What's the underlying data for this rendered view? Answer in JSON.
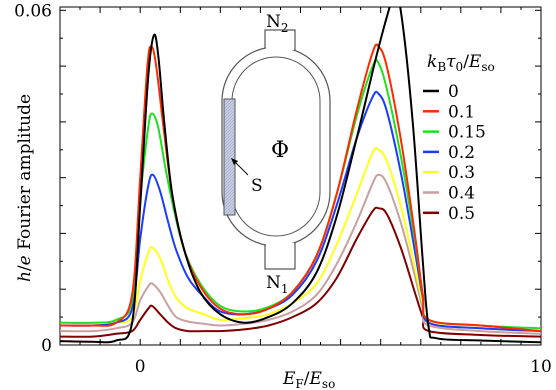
{
  "chart_data": {
    "type": "line",
    "title": "",
    "xlabel": "E_F / E_so",
    "ylabel": "h/e Fourier amplitude",
    "xlim": [
      -2,
      10
    ],
    "ylim": [
      0,
      0.0606
    ],
    "x_ticks": [
      {
        "value": 0,
        "label": "0"
      },
      {
        "value": 10,
        "label": "10"
      }
    ],
    "y_ticks": [
      {
        "value": 0,
        "label": "0"
      },
      {
        "value": 0.06,
        "label": "0.06"
      }
    ],
    "legend_title": "k_B τ_0 / E_so",
    "legend_position": "top-right",
    "grid": false,
    "series": [
      {
        "name": "0",
        "color": "#000000",
        "points": [
          [
            -2,
            0.0007
          ],
          [
            -1.2,
            0.0006
          ],
          [
            -0.6,
            0.0008
          ],
          [
            -0.2,
            0.004
          ],
          [
            0.0,
            0.025
          ],
          [
            0.2,
            0.048
          ],
          [
            0.34,
            0.0555
          ],
          [
            0.45,
            0.052
          ],
          [
            0.6,
            0.04
          ],
          [
            0.8,
            0.027
          ],
          [
            1.1,
            0.017
          ],
          [
            1.5,
            0.0095
          ],
          [
            2.0,
            0.0055
          ],
          [
            2.6,
            0.004
          ],
          [
            3.2,
            0.005
          ],
          [
            3.8,
            0.0075
          ],
          [
            4.4,
            0.013
          ],
          [
            4.9,
            0.023
          ],
          [
            5.4,
            0.037
          ],
          [
            5.9,
            0.052
          ],
          [
            6.2,
            0.06
          ],
          [
            6.32,
            0.0625
          ],
          [
            6.5,
            0.06
          ],
          [
            6.8,
            0.04
          ],
          [
            7.05,
            0.015
          ],
          [
            7.2,
            0.003
          ],
          [
            7.4,
            0.0012
          ],
          [
            8.5,
            0.0008
          ],
          [
            10,
            0.0005
          ]
        ]
      },
      {
        "name": "0.1",
        "color": "#ff2a00",
        "points": [
          [
            -2,
            0.0035
          ],
          [
            -1.2,
            0.0035
          ],
          [
            -0.6,
            0.004
          ],
          [
            -0.2,
            0.009
          ],
          [
            0.0,
            0.03
          ],
          [
            0.18,
            0.05
          ],
          [
            0.28,
            0.0535
          ],
          [
            0.4,
            0.05
          ],
          [
            0.6,
            0.038
          ],
          [
            0.8,
            0.027
          ],
          [
            1.1,
            0.017
          ],
          [
            1.5,
            0.0105
          ],
          [
            2.0,
            0.0065
          ],
          [
            2.6,
            0.0055
          ],
          [
            3.2,
            0.0065
          ],
          [
            3.8,
            0.0095
          ],
          [
            4.4,
            0.016
          ],
          [
            4.9,
            0.027
          ],
          [
            5.4,
            0.042
          ],
          [
            5.8,
            0.0525
          ],
          [
            5.95,
            0.0535
          ],
          [
            6.15,
            0.05
          ],
          [
            6.5,
            0.037
          ],
          [
            6.85,
            0.02
          ],
          [
            7.05,
            0.009
          ],
          [
            7.2,
            0.0045
          ],
          [
            8.5,
            0.0035
          ],
          [
            10,
            0.0025
          ]
        ]
      },
      {
        "name": "0.15",
        "color": "#1fe01f",
        "points": [
          [
            -2,
            0.004
          ],
          [
            -1.2,
            0.004
          ],
          [
            -0.6,
            0.0045
          ],
          [
            -0.2,
            0.008
          ],
          [
            0.0,
            0.026
          ],
          [
            0.2,
            0.039
          ],
          [
            0.3,
            0.0415
          ],
          [
            0.45,
            0.039
          ],
          [
            0.65,
            0.031
          ],
          [
            0.85,
            0.024
          ],
          [
            1.1,
            0.017
          ],
          [
            1.5,
            0.011
          ],
          [
            2.0,
            0.007
          ],
          [
            2.6,
            0.006
          ],
          [
            3.2,
            0.0068
          ],
          [
            3.8,
            0.0095
          ],
          [
            4.4,
            0.016
          ],
          [
            4.9,
            0.027
          ],
          [
            5.4,
            0.041
          ],
          [
            5.8,
            0.05
          ],
          [
            5.95,
            0.0505
          ],
          [
            6.15,
            0.046
          ],
          [
            6.5,
            0.034
          ],
          [
            6.85,
            0.019
          ],
          [
            7.05,
            0.009
          ],
          [
            7.2,
            0.0045
          ],
          [
            8.5,
            0.0035
          ],
          [
            10,
            0.003
          ]
        ]
      },
      {
        "name": "0.2",
        "color": "#1a3cff",
        "points": [
          [
            -2,
            0.0035
          ],
          [
            -1.2,
            0.0035
          ],
          [
            -0.6,
            0.004
          ],
          [
            -0.2,
            0.0065
          ],
          [
            0.0,
            0.019
          ],
          [
            0.2,
            0.0285
          ],
          [
            0.32,
            0.0305
          ],
          [
            0.5,
            0.0275
          ],
          [
            0.7,
            0.022
          ],
          [
            0.9,
            0.017
          ],
          [
            1.2,
            0.012
          ],
          [
            1.6,
            0.0085
          ],
          [
            2.0,
            0.006
          ],
          [
            2.6,
            0.0055
          ],
          [
            3.2,
            0.0065
          ],
          [
            3.8,
            0.009
          ],
          [
            4.4,
            0.015
          ],
          [
            4.9,
            0.025
          ],
          [
            5.4,
            0.037
          ],
          [
            5.8,
            0.0445
          ],
          [
            5.95,
            0.045
          ],
          [
            6.15,
            0.042
          ],
          [
            6.5,
            0.031
          ],
          [
            6.85,
            0.017
          ],
          [
            7.05,
            0.0085
          ],
          [
            7.2,
            0.004
          ],
          [
            8.5,
            0.003
          ],
          [
            10,
            0.0025
          ]
        ]
      },
      {
        "name": "0.3",
        "color": "#ffff1a",
        "points": [
          [
            -2,
            0.0035
          ],
          [
            -1.2,
            0.0035
          ],
          [
            -0.6,
            0.004
          ],
          [
            -0.2,
            0.005
          ],
          [
            0.0,
            0.0115
          ],
          [
            0.2,
            0.0165
          ],
          [
            0.3,
            0.0175
          ],
          [
            0.5,
            0.0155
          ],
          [
            0.7,
            0.0115
          ],
          [
            0.9,
            0.0085
          ],
          [
            1.2,
            0.0065
          ],
          [
            1.6,
            0.0055
          ],
          [
            2.0,
            0.0045
          ],
          [
            2.6,
            0.0048
          ],
          [
            3.2,
            0.0055
          ],
          [
            3.8,
            0.0075
          ],
          [
            4.4,
            0.011
          ],
          [
            4.9,
            0.018
          ],
          [
            5.4,
            0.027
          ],
          [
            5.8,
            0.0345
          ],
          [
            5.95,
            0.035
          ],
          [
            6.15,
            0.033
          ],
          [
            6.5,
            0.025
          ],
          [
            6.85,
            0.014
          ],
          [
            7.05,
            0.0075
          ],
          [
            7.2,
            0.004
          ],
          [
            8.5,
            0.003
          ],
          [
            10,
            0.0025
          ]
        ]
      },
      {
        "name": "0.4",
        "color": "#c8a0a0",
        "points": [
          [
            -2,
            0.0025
          ],
          [
            -1.2,
            0.0025
          ],
          [
            -0.6,
            0.003
          ],
          [
            -0.2,
            0.004
          ],
          [
            0.0,
            0.008
          ],
          [
            0.2,
            0.0105
          ],
          [
            0.3,
            0.011
          ],
          [
            0.5,
            0.0095
          ],
          [
            0.7,
            0.007
          ],
          [
            0.9,
            0.005
          ],
          [
            1.2,
            0.0042
          ],
          [
            1.6,
            0.0038
          ],
          [
            2.0,
            0.0035
          ],
          [
            2.6,
            0.0038
          ],
          [
            3.2,
            0.0045
          ],
          [
            3.8,
            0.006
          ],
          [
            4.4,
            0.009
          ],
          [
            4.9,
            0.0145
          ],
          [
            5.4,
            0.022
          ],
          [
            5.8,
            0.029
          ],
          [
            5.95,
            0.0305
          ],
          [
            6.15,
            0.029
          ],
          [
            6.5,
            0.022
          ],
          [
            6.85,
            0.0125
          ],
          [
            7.05,
            0.0065
          ],
          [
            7.2,
            0.0035
          ],
          [
            8.5,
            0.0025
          ],
          [
            10,
            0.002
          ]
        ]
      },
      {
        "name": "0.5",
        "color": "#800000",
        "points": [
          [
            -2,
            0.0015
          ],
          [
            -1.2,
            0.0015
          ],
          [
            -0.6,
            0.002
          ],
          [
            -0.2,
            0.0025
          ],
          [
            0.0,
            0.0045
          ],
          [
            0.2,
            0.0065
          ],
          [
            0.3,
            0.007
          ],
          [
            0.5,
            0.0055
          ],
          [
            0.7,
            0.004
          ],
          [
            0.9,
            0.003
          ],
          [
            1.2,
            0.0025
          ],
          [
            1.6,
            0.0025
          ],
          [
            2.0,
            0.0025
          ],
          [
            2.6,
            0.0028
          ],
          [
            3.2,
            0.0035
          ],
          [
            3.8,
            0.005
          ],
          [
            4.4,
            0.0075
          ],
          [
            4.9,
            0.012
          ],
          [
            5.4,
            0.019
          ],
          [
            5.8,
            0.024
          ],
          [
            5.95,
            0.0245
          ],
          [
            6.15,
            0.0235
          ],
          [
            6.5,
            0.0175
          ],
          [
            6.85,
            0.0095
          ],
          [
            7.05,
            0.005
          ],
          [
            7.2,
            0.0025
          ],
          [
            8.5,
            0.0018
          ],
          [
            10,
            0.0015
          ]
        ]
      }
    ]
  },
  "inset": {
    "top_lead": {
      "base": "N",
      "sub": "2"
    },
    "bottom_lead": {
      "base": "N",
      "sub": "1"
    },
    "flux": "Φ",
    "superconductor": "S",
    "stroke_color": "#555555",
    "s_fill": "#c8cfe4"
  }
}
